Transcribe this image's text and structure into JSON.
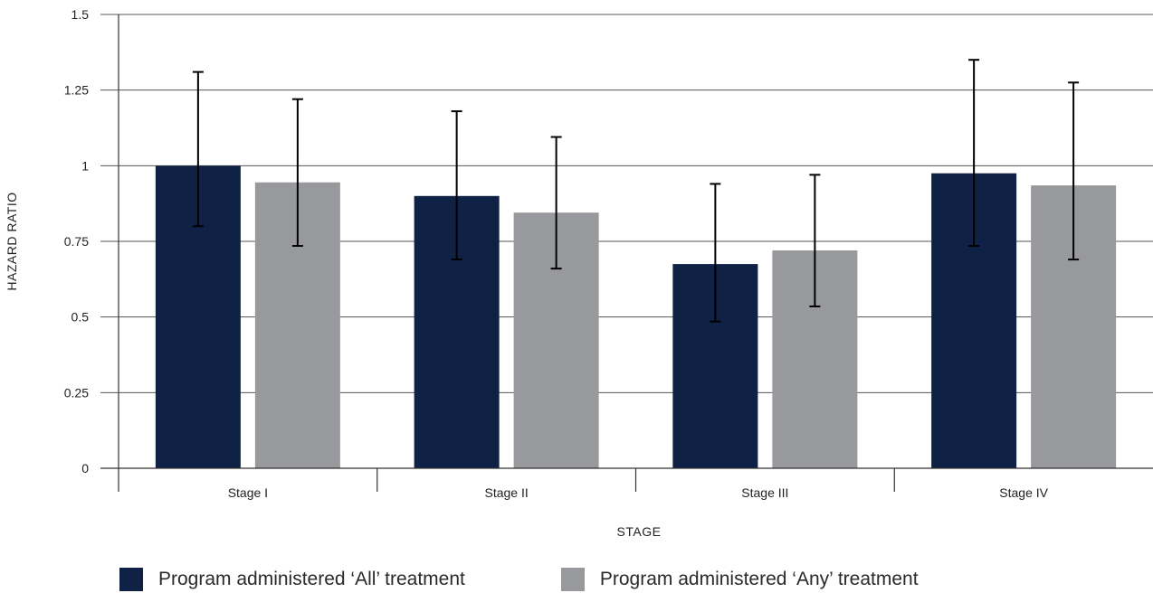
{
  "chart_data": {
    "type": "bar",
    "xlabel": "STAGE",
    "ylabel": "HAZARD RATIO",
    "ylim": [
      0,
      1.5
    ],
    "yticks": [
      0,
      0.25,
      0.5,
      0.75,
      1,
      1.25,
      1.5
    ],
    "ytick_labels": [
      "0",
      "0.25",
      "0.5",
      "0.75",
      "1",
      "1.25",
      "1.5"
    ],
    "grid": true,
    "legend_position": "bottom",
    "categories": [
      "Stage I",
      "Stage II",
      "Stage III",
      "Stage IV"
    ],
    "series": [
      {
        "name": "Program administered ‘All’ treatment",
        "color": "#0f2144",
        "values": [
          1.0,
          0.9,
          0.675,
          0.975
        ],
        "error_low": [
          0.8,
          0.69,
          0.485,
          0.735
        ],
        "error_high": [
          1.31,
          1.18,
          0.94,
          1.35
        ]
      },
      {
        "name": "Program administered ‘Any’ treatment",
        "color": "#98999c",
        "values": [
          0.945,
          0.845,
          0.72,
          0.935
        ],
        "error_low": [
          0.735,
          0.66,
          0.535,
          0.69
        ],
        "error_high": [
          1.22,
          1.095,
          0.97,
          1.275
        ]
      }
    ]
  }
}
